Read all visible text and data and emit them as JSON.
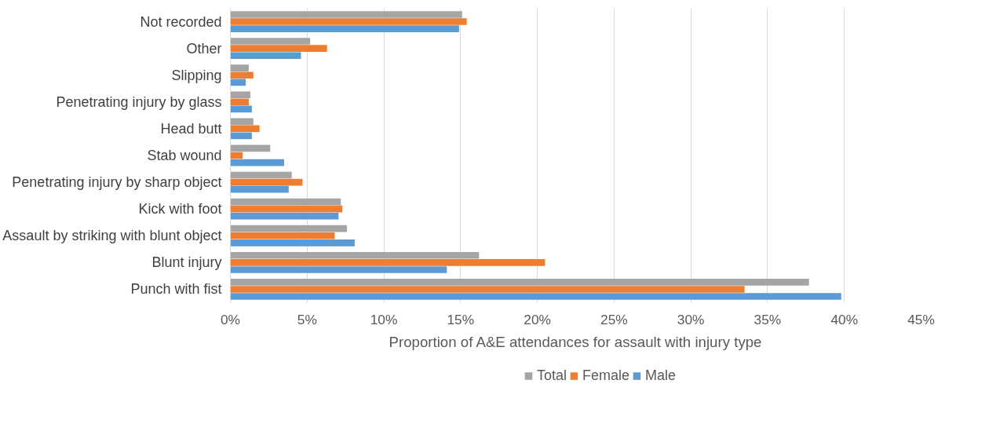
{
  "chart_data": {
    "type": "bar",
    "orientation": "horizontal",
    "xlabel": "Proportion of A&E attendances for assault with injury type",
    "categories": [
      "Not recorded",
      "Other",
      "Slipping",
      "Penetrating injury by glass",
      "Head butt",
      "Stab wound",
      "Penetrating injury by sharp object",
      "Kick with foot",
      "Assault by striking with blunt object",
      "Blunt injury",
      "Punch with fist"
    ],
    "series": [
      {
        "name": "Total",
        "color": "#a5a5a5",
        "values": [
          15.1,
          5.2,
          1.2,
          1.3,
          1.5,
          2.6,
          4.0,
          7.2,
          7.6,
          16.2,
          37.7
        ]
      },
      {
        "name": "Female",
        "color": "#ed7d31",
        "values": [
          15.4,
          6.3,
          1.5,
          1.2,
          1.9,
          0.8,
          4.7,
          7.3,
          6.8,
          20.5,
          33.5
        ]
      },
      {
        "name": "Male",
        "color": "#5b9bd5",
        "values": [
          14.9,
          4.6,
          1.0,
          1.4,
          1.4,
          3.5,
          3.8,
          7.05,
          8.1,
          14.1,
          39.8
        ]
      }
    ],
    "xlim": [
      0,
      45
    ],
    "xticks": [
      {
        "value": 0,
        "label": "0%"
      },
      {
        "value": 5,
        "label": "5%"
      },
      {
        "value": 10,
        "label": "10%"
      },
      {
        "value": 15,
        "label": "15%"
      },
      {
        "value": 20,
        "label": "20%"
      },
      {
        "value": 25,
        "label": "25%"
      },
      {
        "value": 30,
        "label": "30%"
      },
      {
        "value": 35,
        "label": "35%"
      },
      {
        "value": 40,
        "label": "40%"
      },
      {
        "value": 45,
        "label": "45%"
      }
    ],
    "grid": "x",
    "legend": "bottom"
  }
}
